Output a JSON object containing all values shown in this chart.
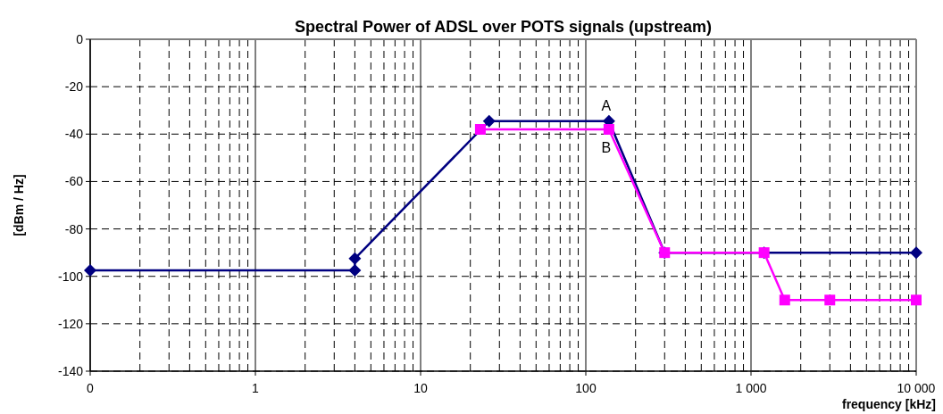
{
  "chart_data": {
    "type": "line",
    "title": "Spectral Power of ADSL over POTS signals (upstream)",
    "xlabel": "frequency [kHz]",
    "ylabel": "[dBm / Hz]",
    "log": "x",
    "xlim": [
      0.1,
      10000
    ],
    "xticks": [
      {
        "value": 0.1,
        "label": "0"
      },
      1,
      10,
      100,
      {
        "value": 1000,
        "label": "1 000"
      },
      {
        "value": 10000,
        "label": "10 000"
      }
    ],
    "ylim": [
      -140,
      0
    ],
    "yticks": [
      -140,
      -120,
      -100,
      -80,
      -60,
      -40,
      -20,
      0
    ],
    "grid": true,
    "line_style": "solid",
    "series": [
      {
        "color": "#000080",
        "marker": "diamond",
        "x": [
          0.1,
          4,
          4,
          26,
          138,
          300,
          1200,
          10000
        ],
        "values": [
          -97.5,
          -97.5,
          -92.5,
          -34.5,
          -34.5,
          -90,
          -90,
          -90
        ]
      },
      {
        "color": "#ff00ff",
        "marker": "square",
        "x": [
          23,
          138,
          300,
          1200,
          1600,
          3000,
          10000
        ],
        "values": [
          -38,
          -38,
          -90,
          -90,
          -110,
          -110,
          -110
        ]
      }
    ],
    "annotations": [
      {
        "text": "A",
        "x": 138,
        "y": -34.5
      },
      {
        "text": "B",
        "x": 138,
        "y": -38
      }
    ]
  }
}
